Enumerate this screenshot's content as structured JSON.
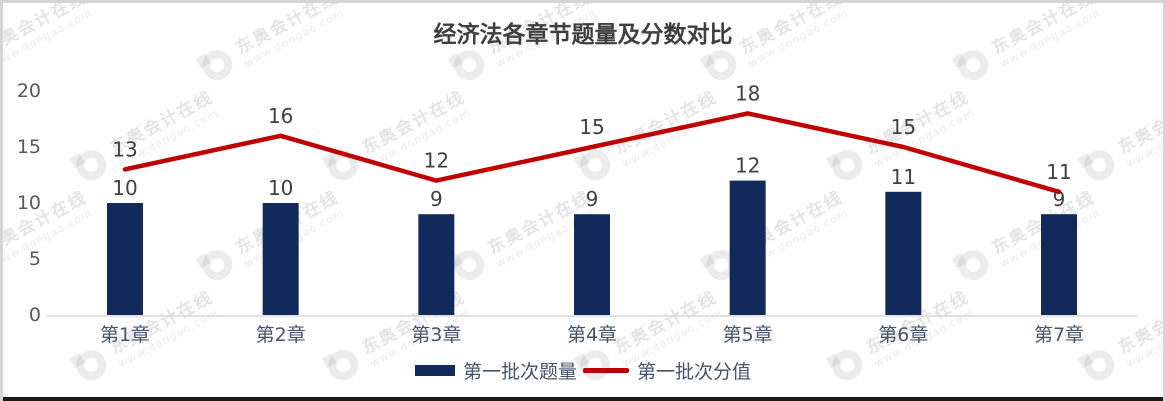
{
  "chart_data": {
    "type": "combo",
    "title": "经济法各章节题量及分数对比",
    "categories": [
      "第1章",
      "第2章",
      "第3章",
      "第4章",
      "第5章",
      "第6章",
      "第7章"
    ],
    "series": [
      {
        "name": "第一批次题量",
        "type": "bar",
        "color": "#12295B",
        "values": [
          10,
          10,
          9,
          9,
          12,
          11,
          9
        ]
      },
      {
        "name": "第一批次分值",
        "type": "line",
        "color": "#C00000",
        "values": [
          13,
          16,
          12,
          15,
          18,
          15,
          11
        ]
      }
    ],
    "y_axis": {
      "min": 0,
      "max": 20,
      "step": 5,
      "ticks": [
        0,
        5,
        10,
        15,
        20
      ]
    },
    "grid": false,
    "data_labels": true,
    "legend_position": "bottom"
  },
  "watermark": {
    "line1": "东奥会计在线",
    "line2": "www.dongao.com"
  },
  "colors": {
    "bar": "#12295B",
    "line": "#C00000",
    "title_text": "#3F3F3F",
    "data_label": "#404040",
    "y_axis_label": "#595959",
    "x_axis_label": "#44546A",
    "legend_text": "#44546A",
    "axis_line": "#D9D9D9",
    "panel_border": "#D5D5D5",
    "bottom_strip": "#191919"
  }
}
